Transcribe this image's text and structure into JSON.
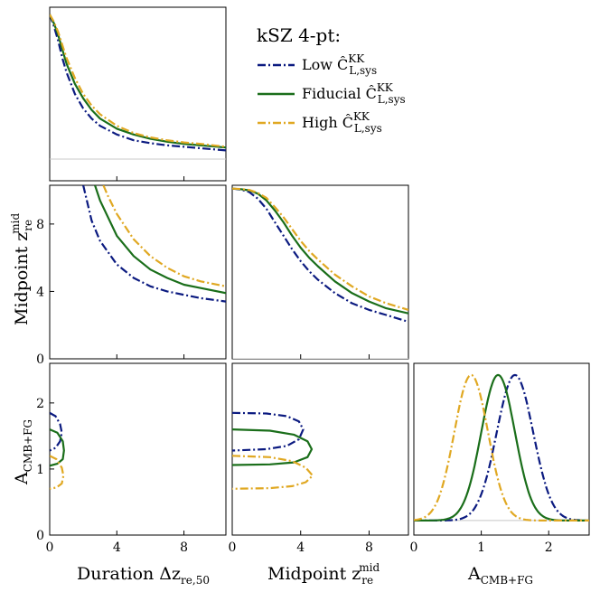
{
  "chart_data": {
    "type": "line",
    "title": "kSZ 4-pt:",
    "legend": {
      "placement": "top-right",
      "title": "kSZ 4-pt:",
      "entries": [
        {
          "prefix": "Low",
          "sym": "Ĉ",
          "sup": "KK",
          "sub": "L,sys",
          "color": "#0b1a80",
          "dash": "dash-dot"
        },
        {
          "prefix": "Fiducial",
          "sym": "Ĉ",
          "sup": "KK",
          "sub": "L,sys",
          "color": "#1a6e1a",
          "dash": "solid"
        },
        {
          "prefix": "High",
          "sym": "Ĉ",
          "sup": "KK",
          "sub": "L,sys",
          "color": "#e0a822",
          "dash": "dash-dot"
        }
      ]
    },
    "parameters": {
      "duration": {
        "label_main": "Duration Δz",
        "label_sub": "re,50",
        "range": [
          0,
          10.5
        ],
        "ticks": [
          "0",
          "4",
          "8"
        ],
        "tick_values": [
          0,
          4,
          8
        ]
      },
      "midpoint": {
        "label_main": "Midpoint z",
        "label_sup": "mid",
        "label_sub": "re",
        "range": [
          0,
          10.3
        ],
        "ticks": [
          "0",
          "4",
          "8"
        ],
        "tick_values": [
          0,
          4,
          8
        ]
      },
      "amplitude": {
        "label_main": "A",
        "label_sub": "CMB+FG",
        "range": [
          0,
          2.6
        ],
        "ticks": [
          "0",
          "1",
          "2"
        ],
        "tick_values": [
          0,
          1,
          2
        ]
      }
    },
    "marginals": {
      "duration": {
        "x": [
          0,
          0.25,
          0.5,
          0.75,
          1,
          1.5,
          2,
          2.5,
          3,
          4,
          5,
          6,
          7,
          8,
          9,
          10.5
        ],
        "series": [
          {
            "name": "Low",
            "y": [
              1.0,
              0.92,
              0.82,
              0.7,
              0.6,
              0.45,
              0.35,
              0.28,
              0.23,
              0.17,
              0.13,
              0.11,
              0.095,
              0.085,
              0.075,
              0.06
            ]
          },
          {
            "name": "Fiducial",
            "y": [
              1.0,
              0.94,
              0.86,
              0.76,
              0.66,
              0.52,
              0.42,
              0.34,
              0.28,
              0.21,
              0.17,
              0.14,
              0.12,
              0.105,
              0.095,
              0.08
            ]
          },
          {
            "name": "High",
            "y": [
              1.0,
              0.95,
              0.88,
              0.79,
              0.7,
              0.56,
              0.45,
              0.37,
              0.31,
              0.23,
              0.18,
              0.15,
              0.13,
              0.115,
              0.105,
              0.085
            ]
          }
        ]
      },
      "amplitude": {
        "series": [
          {
            "name": "Low",
            "mean": 1.5,
            "sigma": 0.27
          },
          {
            "name": "Fiducial",
            "mean": 1.25,
            "sigma": 0.25
          },
          {
            "name": "High",
            "mean": 0.85,
            "sigma": 0.25
          }
        ]
      }
    },
    "contours": {
      "midpoint_vs_duration": {
        "series": [
          {
            "name": "Low",
            "x": [
              2.0,
              2.5,
              3,
              4,
              5,
              6,
              7,
              8,
              9,
              10.5
            ],
            "y": [
              10.3,
              8.2,
              7.0,
              5.6,
              4.8,
              4.3,
              4.0,
              3.8,
              3.6,
              3.4
            ]
          },
          {
            "name": "Fiducial",
            "x": [
              2.7,
              3,
              4,
              5,
              6,
              7,
              8,
              9,
              10.5
            ],
            "y": [
              10.3,
              9.4,
              7.3,
              6.1,
              5.3,
              4.8,
              4.4,
              4.2,
              3.9
            ]
          },
          {
            "name": "High",
            "x": [
              3.2,
              3.5,
              4,
              5,
              6,
              7,
              8,
              9,
              10.5
            ],
            "y": [
              10.3,
              9.6,
              8.6,
              7.1,
              6.1,
              5.4,
              4.9,
              4.6,
              4.3
            ]
          }
        ]
      },
      "amplitude_vs_duration": {
        "series": [
          {
            "name": "Low",
            "x": [
              0,
              0.35,
              0.62,
              0.72,
              0.62,
              0.35,
              0
            ],
            "y": [
              1.85,
              1.8,
              1.68,
              1.55,
              1.42,
              1.32,
              1.28
            ]
          },
          {
            "name": "Fiducial",
            "x": [
              0,
              0.45,
              0.78,
              0.85,
              0.78,
              0.45,
              0
            ],
            "y": [
              1.6,
              1.55,
              1.42,
              1.28,
              1.15,
              1.08,
              1.05
            ]
          },
          {
            "name": "High",
            "x": [
              0,
              0.4,
              0.72,
              0.82,
              0.72,
              0.4,
              0
            ],
            "y": [
              1.2,
              1.15,
              1.02,
              0.9,
              0.78,
              0.72,
              0.7
            ]
          }
        ]
      },
      "amplitude_vs_midpoint": {
        "series": [
          {
            "name": "Low",
            "x": [
              0,
              2,
              3.2,
              3.9,
              4.15,
              3.9,
              3.2,
              2,
              0
            ],
            "y": [
              1.85,
              1.84,
              1.8,
              1.72,
              1.6,
              1.45,
              1.35,
              1.3,
              1.28
            ]
          },
          {
            "name": "Fiducial",
            "x": [
              0,
              2.2,
              3.6,
              4.4,
              4.65,
              4.4,
              3.6,
              2.2,
              0
            ],
            "y": [
              1.6,
              1.58,
              1.52,
              1.42,
              1.3,
              1.18,
              1.1,
              1.07,
              1.06
            ]
          },
          {
            "name": "High",
            "x": [
              0,
              2.2,
              3.5,
              4.3,
              4.7,
              4.3,
              3.5,
              2.2,
              0
            ],
            "y": [
              1.2,
              1.18,
              1.12,
              1.02,
              0.9,
              0.8,
              0.74,
              0.71,
              0.7
            ]
          }
        ]
      },
      "midpoint_marginal": {
        "x": [
          0,
          0.5,
          1,
          1.5,
          2,
          2.5,
          3,
          3.5,
          4,
          4.5,
          5,
          6,
          7,
          8,
          9,
          10.3
        ],
        "series": [
          {
            "name": "Low",
            "y": [
              10.1,
              10.05,
              9.9,
              9.5,
              8.9,
              8.1,
              7.3,
              6.5,
              5.8,
              5.2,
              4.7,
              3.9,
              3.3,
              2.9,
              2.6,
              2.2
            ]
          },
          {
            "name": "Fiducial",
            "y": [
              10.1,
              10.07,
              10.0,
              9.8,
              9.4,
              8.8,
              8.1,
              7.3,
              6.6,
              6.0,
              5.5,
              4.6,
              3.9,
              3.4,
              3.0,
              2.7
            ]
          },
          {
            "name": "High",
            "y": [
              10.1,
              10.08,
              10.02,
              9.85,
              9.55,
              9.0,
              8.4,
              7.7,
              7.0,
              6.4,
              5.9,
              5.0,
              4.3,
              3.7,
              3.3,
              2.9
            ]
          }
        ]
      }
    }
  }
}
